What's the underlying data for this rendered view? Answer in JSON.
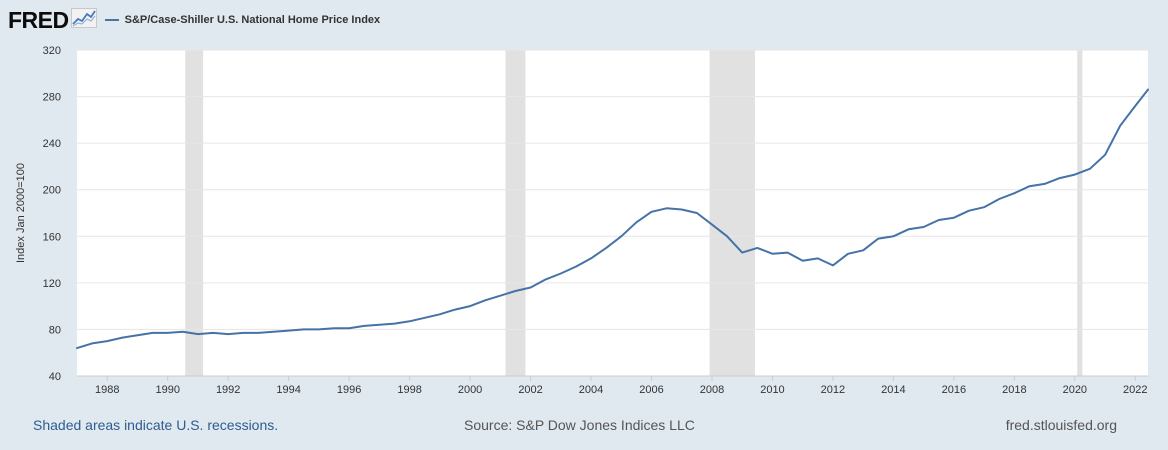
{
  "header": {
    "logo_text": "FRED",
    "logo_icon": "line-chart-icon",
    "series_name": "S&P/Case-Shiller U.S. National Home Price Index"
  },
  "footer": {
    "recession_note": "Shaded areas indicate U.S. recessions.",
    "source": "Source: S&P Dow Jones Indices LLC",
    "site": "fred.stlouisfed.org"
  },
  "colors": {
    "series": "#4572a7",
    "recession": "#e1e1e1",
    "background": "#e1e9f0",
    "plot_background": "#ffffff",
    "gridline": "#e6e6e6"
  },
  "chart_data": {
    "type": "line",
    "title": "",
    "xlabel": "",
    "ylabel": "Index Jan 2000=100",
    "xlim": [
      1987.0,
      2022.42
    ],
    "ylim": [
      40,
      320
    ],
    "yticks": [
      40,
      80,
      120,
      160,
      200,
      240,
      280,
      320
    ],
    "xticks": [
      1988,
      1990,
      1992,
      1994,
      1996,
      1998,
      2000,
      2002,
      2004,
      2006,
      2008,
      2010,
      2012,
      2014,
      2016,
      2018,
      2020,
      2022
    ],
    "grid": true,
    "legend": "top-left",
    "recessions": [
      [
        1990.58,
        1991.17
      ],
      [
        2001.17,
        2001.83
      ],
      [
        2007.92,
        2009.42
      ],
      [
        2020.08,
        2020.25
      ]
    ],
    "series": [
      {
        "name": "S&P/Case-Shiller U.S. National Home Price Index",
        "x": [
          1987.0,
          1987.5,
          1988.0,
          1988.5,
          1989.0,
          1989.5,
          1990.0,
          1990.5,
          1991.0,
          1991.5,
          1992.0,
          1992.5,
          1993.0,
          1993.5,
          1994.0,
          1994.5,
          1995.0,
          1995.5,
          1996.0,
          1996.5,
          1997.0,
          1997.5,
          1998.0,
          1998.5,
          1999.0,
          1999.5,
          2000.0,
          2000.5,
          2001.0,
          2001.5,
          2002.0,
          2002.5,
          2003.0,
          2003.5,
          2004.0,
          2004.5,
          2005.0,
          2005.5,
          2006.0,
          2006.5,
          2007.0,
          2007.5,
          2008.0,
          2008.5,
          2009.0,
          2009.5,
          2010.0,
          2010.5,
          2011.0,
          2011.5,
          2012.0,
          2012.5,
          2013.0,
          2013.5,
          2014.0,
          2014.5,
          2015.0,
          2015.5,
          2016.0,
          2016.5,
          2017.0,
          2017.5,
          2018.0,
          2018.5,
          2019.0,
          2019.5,
          2020.0,
          2020.5,
          2021.0,
          2021.5,
          2022.0,
          2022.42
        ],
        "y": [
          64,
          68,
          70,
          73,
          75,
          77,
          77,
          78,
          76,
          77,
          76,
          77,
          77,
          78,
          79,
          80,
          80,
          81,
          81,
          83,
          84,
          85,
          87,
          90,
          93,
          97,
          100,
          105,
          109,
          113,
          116,
          123,
          128,
          134,
          141,
          150,
          160,
          172,
          181,
          184,
          183,
          180,
          170,
          160,
          146,
          150,
          145,
          146,
          139,
          141,
          135,
          145,
          148,
          158,
          160,
          166,
          168,
          174,
          176,
          182,
          185,
          192,
          197,
          203,
          205,
          210,
          213,
          218,
          230,
          255,
          272,
          286
        ]
      }
    ]
  }
}
